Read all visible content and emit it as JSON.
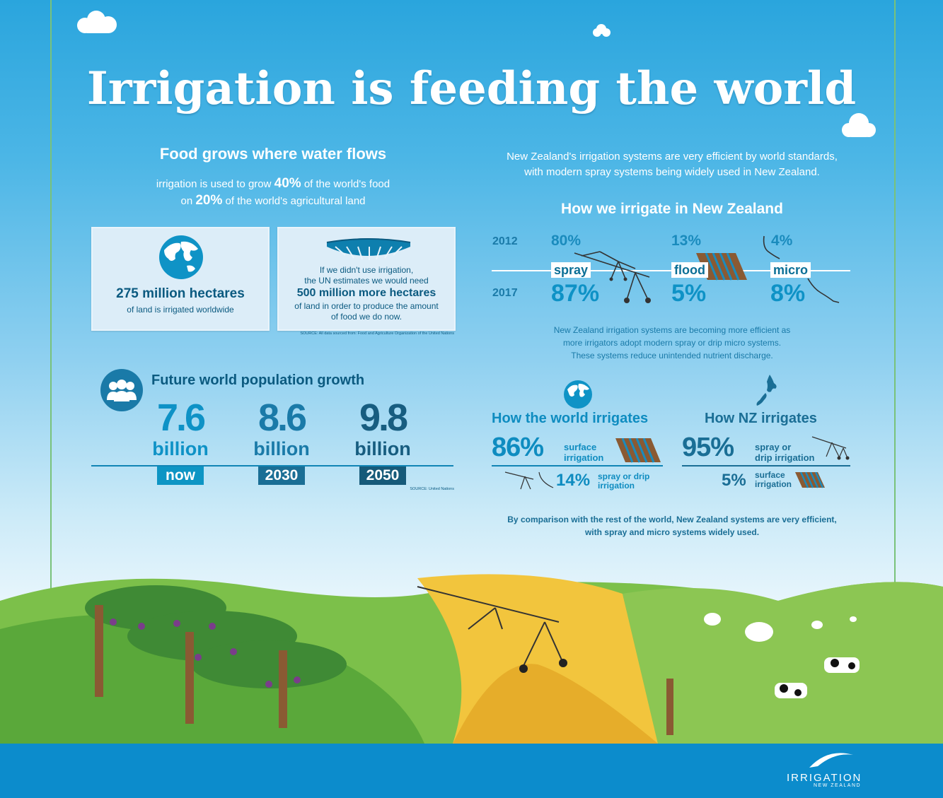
{
  "title": "Irrigation is feeding the world",
  "left": {
    "heading": "Food grows where water flows",
    "line1_a": "irrigation is used to grow ",
    "line1_pct": "40%",
    "line1_b": " of the world's food",
    "line2_a": "on ",
    "line2_pct": "20%",
    "line2_b": " of the world's agricultural land",
    "box1_big": "275 million hectares",
    "box1_small": "of land is irrigated worldwide",
    "box2_l1": "If we didn't use irrigation,",
    "box2_l2": "the UN estimates we would need",
    "box2_big": "500 million more hectares",
    "box2_l3": "of land in order to produce the amount",
    "box2_l4": "of food we do now.",
    "source1": "SOURCE: All data sourced from: Food and Agriculture Organization of the United Nations"
  },
  "population": {
    "heading": "Future world population growth",
    "items": [
      {
        "value": "7.6",
        "unit": "billion",
        "year": "now"
      },
      {
        "value": "8.6",
        "unit": "billion",
        "year": "2030"
      },
      {
        "value": "9.8",
        "unit": "billion",
        "year": "2050"
      }
    ],
    "source": "SOURCE: United Nations"
  },
  "right": {
    "intro_l1": "New Zealand's irrigation systems are very efficient by world standards,",
    "intro_l2": "with modern spray systems being widely used in New Zealand.",
    "heading": "How we irrigate in New Zealand",
    "year_top": "2012",
    "year_bottom": "2017",
    "methods": [
      {
        "label": "spray",
        "top": "80%",
        "bottom": "87%"
      },
      {
        "label": "flood",
        "top": "13%",
        "bottom": "5%"
      },
      {
        "label": "micro",
        "top": "4%",
        "bottom": "8%"
      }
    ],
    "note_l1": "New Zealand irrigation systems are becoming more efficient as",
    "note_l2": "more irrigators adopt modern spray or drip micro systems.",
    "note_l3": "These systems reduce unintended nutrient discharge.",
    "world_heading": "How the world irrigates",
    "world_main_pct": "86%",
    "world_main_label_l1": "surface",
    "world_main_label_l2": "irrigation",
    "world_sub_pct": "14%",
    "world_sub_label_l1": "spray or drip",
    "world_sub_label_l2": "irrigation",
    "nz_heading": "How NZ irrigates",
    "nz_main_pct": "95%",
    "nz_main_label_l1": "spray or",
    "nz_main_label_l2": "drip irrigation",
    "nz_sub_pct": "5%",
    "nz_sub_label_l1": "surface",
    "nz_sub_label_l2": "irrigation",
    "compare_l1": "By comparison with the rest of the world, New Zealand systems are very efficient,",
    "compare_l2": "with spray and micro systems widely used."
  },
  "logo": {
    "name": "IRRIGATION",
    "sub": "NEW ZEALAND"
  },
  "colors": {
    "sky": "#2aa5dd",
    "accent": "#0d95c4",
    "dark_blue": "#165a79",
    "grass": "#6db33f",
    "wheat": "#f0c238"
  }
}
